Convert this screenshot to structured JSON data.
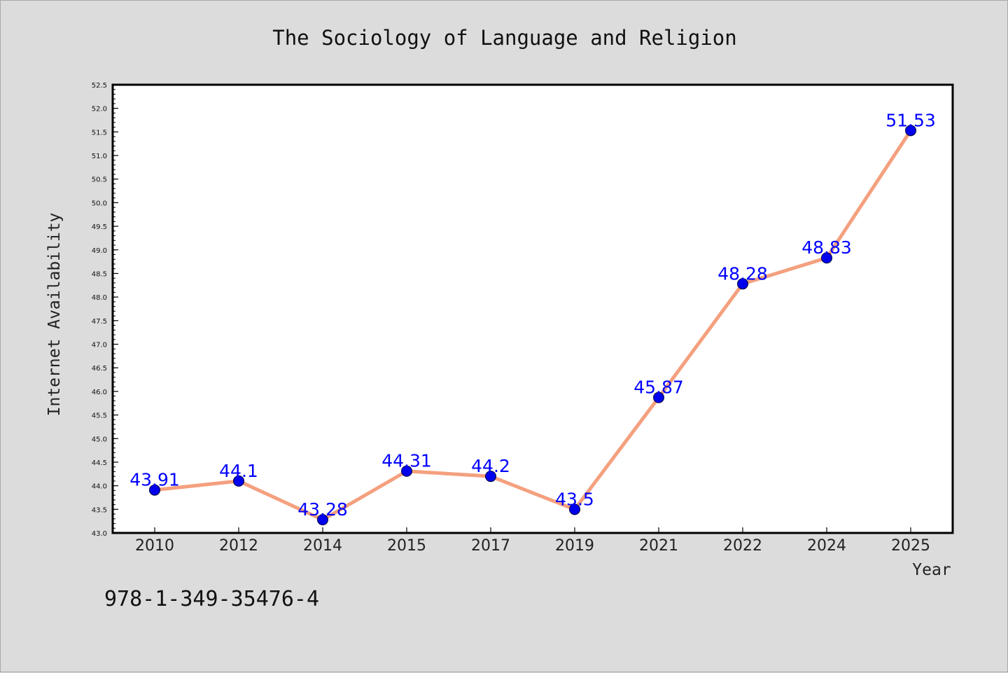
{
  "footer_code": "978-1-349-35476-4",
  "colors": {
    "line": "#f4a07e",
    "marker": "#0000ee",
    "data_label": "#0000ff",
    "background": "#dcdcdc",
    "plot_area": "#ffffff"
  },
  "chart_data": {
    "type": "line",
    "title": "The Sociology of Language and Religion",
    "xlabel": "Year",
    "ylabel": "Internet Availability",
    "categories": [
      "2010",
      "2012",
      "2014",
      "2015",
      "2017",
      "2019",
      "2021",
      "2022",
      "2024",
      "2025"
    ],
    "series": [
      {
        "values": [
          43.91,
          44.1,
          43.28,
          44.31,
          44.2,
          43.5,
          45.87,
          48.28,
          48.83,
          51.53
        ]
      }
    ],
    "data_labels": [
      "43.91",
      "44.1",
      "43.28",
      "44.31",
      "44.2",
      "43.5",
      "45.87",
      "48.28",
      "48.83",
      "51.53"
    ],
    "ylim": [
      43.0,
      52.5
    ],
    "ytick_step": 0.5,
    "yminor_step": 0.1,
    "grid": false,
    "legend": "none"
  }
}
